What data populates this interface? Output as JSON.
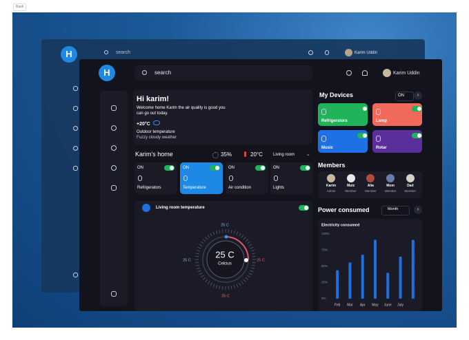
{
  "tag": "Bash",
  "back_window": {
    "logo": "H",
    "search": "search",
    "user": "Karim Uddin"
  },
  "app": {
    "logo": "H",
    "search": "search",
    "user": "Karim Uddin",
    "greeting": {
      "title": "Hi karim!",
      "message_lines": [
        "Welcome home Karim the air quality is good you",
        "can go out today."
      ],
      "temp": "+20°C",
      "temp_label": "Outdoor temperature",
      "weather": "Fuzzy cloudy weather"
    },
    "home": {
      "title": "Karim's home",
      "humidity": "35%",
      "temperature": "20°C",
      "room": "Living room"
    },
    "quick_devices": [
      {
        "state": "ON",
        "name": "Refrigerators",
        "color": "#1a1b27"
      },
      {
        "state": "ON",
        "name": "Temperature",
        "color": "#1e88e5"
      },
      {
        "state": "ON",
        "name": "Air condition",
        "color": "#1a1b27"
      },
      {
        "state": "ON",
        "name": "Lights",
        "color": "#1a1b27"
      }
    ],
    "thermostat": {
      "title": "Living room temperature",
      "value": "25 C",
      "unit": "Celcius",
      "label_top": "25 C",
      "label_left": "25 C",
      "label_right": "25 C",
      "label_bottom": "25 C"
    },
    "devices": {
      "title": "My Devices",
      "state": "ON",
      "items": [
        {
          "name": "Refrigerators",
          "color": "#1fb45a"
        },
        {
          "name": "Lamp",
          "color": "#f06a5c"
        },
        {
          "name": "Music",
          "color": "#1f6fe5"
        },
        {
          "name": "Rotar",
          "color": "#5a2f9c"
        }
      ]
    },
    "members": {
      "title": "Members",
      "items": [
        {
          "name": "Karim",
          "role": "Admin",
          "color": "#c9b89e"
        },
        {
          "name": "Muiz",
          "role": "Member",
          "color": "#e9e9e9"
        },
        {
          "name": "Alia",
          "role": "Member",
          "color": "#b04a3a"
        },
        {
          "name": "Mom",
          "role": "Member",
          "color": "#6a7da8"
        },
        {
          "name": "Dad",
          "role": "Member",
          "color": "#d8d2c4"
        }
      ]
    },
    "power": {
      "title": "Power consumed",
      "period": "Month",
      "chart": {
        "type": "bar",
        "title": "Electricity consumed",
        "color": "#1e6fe0",
        "categories": [
          "Feb",
          "Mar",
          "Apr",
          "May",
          "June",
          "July",
          null
        ],
        "values": [
          44,
          56,
          68,
          91,
          40,
          65,
          91
        ],
        "ylim": [
          0,
          100
        ],
        "yticks": [
          {
            "value": 0,
            "label": "0%"
          },
          {
            "value": 25,
            "label": "25%"
          },
          {
            "value": 50,
            "label": "50%"
          },
          {
            "value": 75,
            "label": "75%"
          },
          {
            "value": 100,
            "label": "100%"
          }
        ],
        "grid": true
      }
    }
  }
}
